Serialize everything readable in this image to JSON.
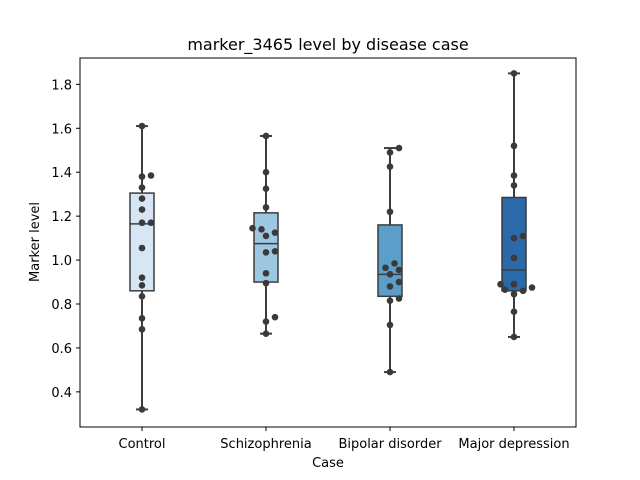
{
  "chart_data": {
    "type": "box",
    "title": "marker_3465 level by disease case",
    "xlabel": "Case",
    "ylabel": "Marker level",
    "ylim": [
      0.24,
      1.92
    ],
    "yticks": [
      "0.4",
      "0.6",
      "0.8",
      "1.0",
      "1.2",
      "1.4",
      "1.6",
      "1.8"
    ],
    "grid": false,
    "categories": [
      "Control",
      "Schizophrenia",
      "Bipolar disorder",
      "Major depression"
    ],
    "colors": [
      "#d6e6f4",
      "#9dc8e1",
      "#5a9ec9",
      "#2a6aa8"
    ],
    "boxes": [
      {
        "category": "Control",
        "whisker_low": 0.32,
        "q1": 0.86,
        "median": 1.165,
        "q3": 1.305,
        "whisker_high": 1.61
      },
      {
        "category": "Schizophrenia",
        "whisker_low": 0.665,
        "q1": 0.9,
        "median": 1.075,
        "q3": 1.215,
        "whisker_high": 1.565
      },
      {
        "category": "Bipolar disorder",
        "whisker_low": 0.49,
        "q1": 0.835,
        "median": 0.935,
        "q3": 1.16,
        "whisker_high": 1.51
      },
      {
        "category": "Major depression",
        "whisker_low": 0.65,
        "q1": 0.86,
        "median": 0.955,
        "q3": 1.285,
        "whisker_high": 1.85
      }
    ],
    "points": [
      [
        0.32,
        0.685,
        0.735,
        0.835,
        0.885,
        0.92,
        1.055,
        1.17,
        1.17,
        1.23,
        1.28,
        1.33,
        1.38,
        1.385,
        1.61
      ],
      [
        0.665,
        0.72,
        0.74,
        0.895,
        0.94,
        1.035,
        1.04,
        1.11,
        1.125,
        1.14,
        1.145,
        1.24,
        1.325,
        1.4,
        1.565
      ],
      [
        0.49,
        0.705,
        0.815,
        0.825,
        0.88,
        0.9,
        0.935,
        0.955,
        0.965,
        0.985,
        1.22,
        1.425,
        1.49,
        1.51
      ],
      [
        0.65,
        0.765,
        0.845,
        0.86,
        0.865,
        0.875,
        0.89,
        0.89,
        1.01,
        1.1,
        1.11,
        1.34,
        1.385,
        1.52,
        1.85
      ]
    ]
  }
}
